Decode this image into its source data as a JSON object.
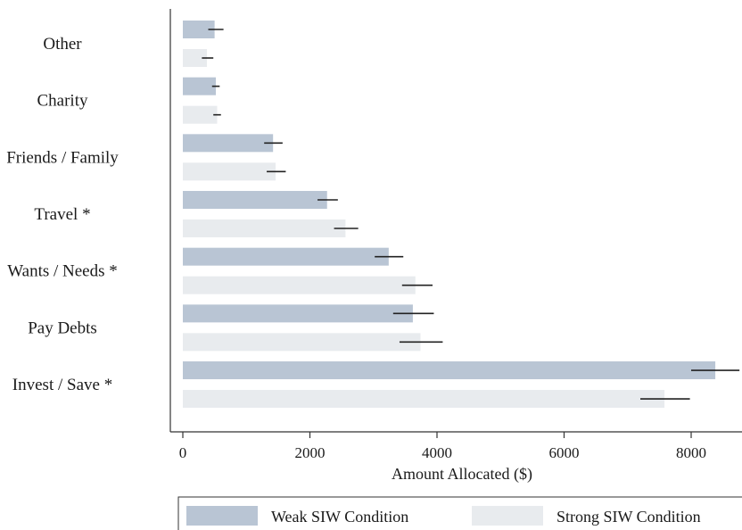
{
  "chart_data": {
    "type": "bar",
    "orientation": "horizontal",
    "categories": [
      "Other",
      "Charity",
      "Friends / Family",
      "Travel *",
      "Wants / Needs *",
      "Pay Debts",
      "Invest / Save *"
    ],
    "series": [
      {
        "name": "Weak SIW Condition",
        "color": "#b9c5d4",
        "values": [
          500,
          520,
          1420,
          2270,
          3240,
          3620,
          8380
        ],
        "ci_low": [
          400,
          460,
          1280,
          2120,
          3020,
          3310,
          8000
        ],
        "ci_high": [
          640,
          580,
          1570,
          2440,
          3470,
          3950,
          8760
        ]
      },
      {
        "name": "Strong SIW Condition",
        "color": "#e8ebee",
        "values": [
          380,
          540,
          1460,
          2560,
          3660,
          3740,
          7580
        ],
        "ci_low": [
          300,
          480,
          1320,
          2380,
          3450,
          3410,
          7200
        ],
        "ci_high": [
          480,
          600,
          1620,
          2760,
          3930,
          4090,
          7980
        ]
      }
    ],
    "xlabel": "Amount Allocated ($)",
    "ylabel": "",
    "xlim": [
      -200,
      8800
    ],
    "xticks": [
      0,
      2000,
      4000,
      6000,
      8000
    ],
    "grid": false,
    "legend_position": "bottom"
  }
}
